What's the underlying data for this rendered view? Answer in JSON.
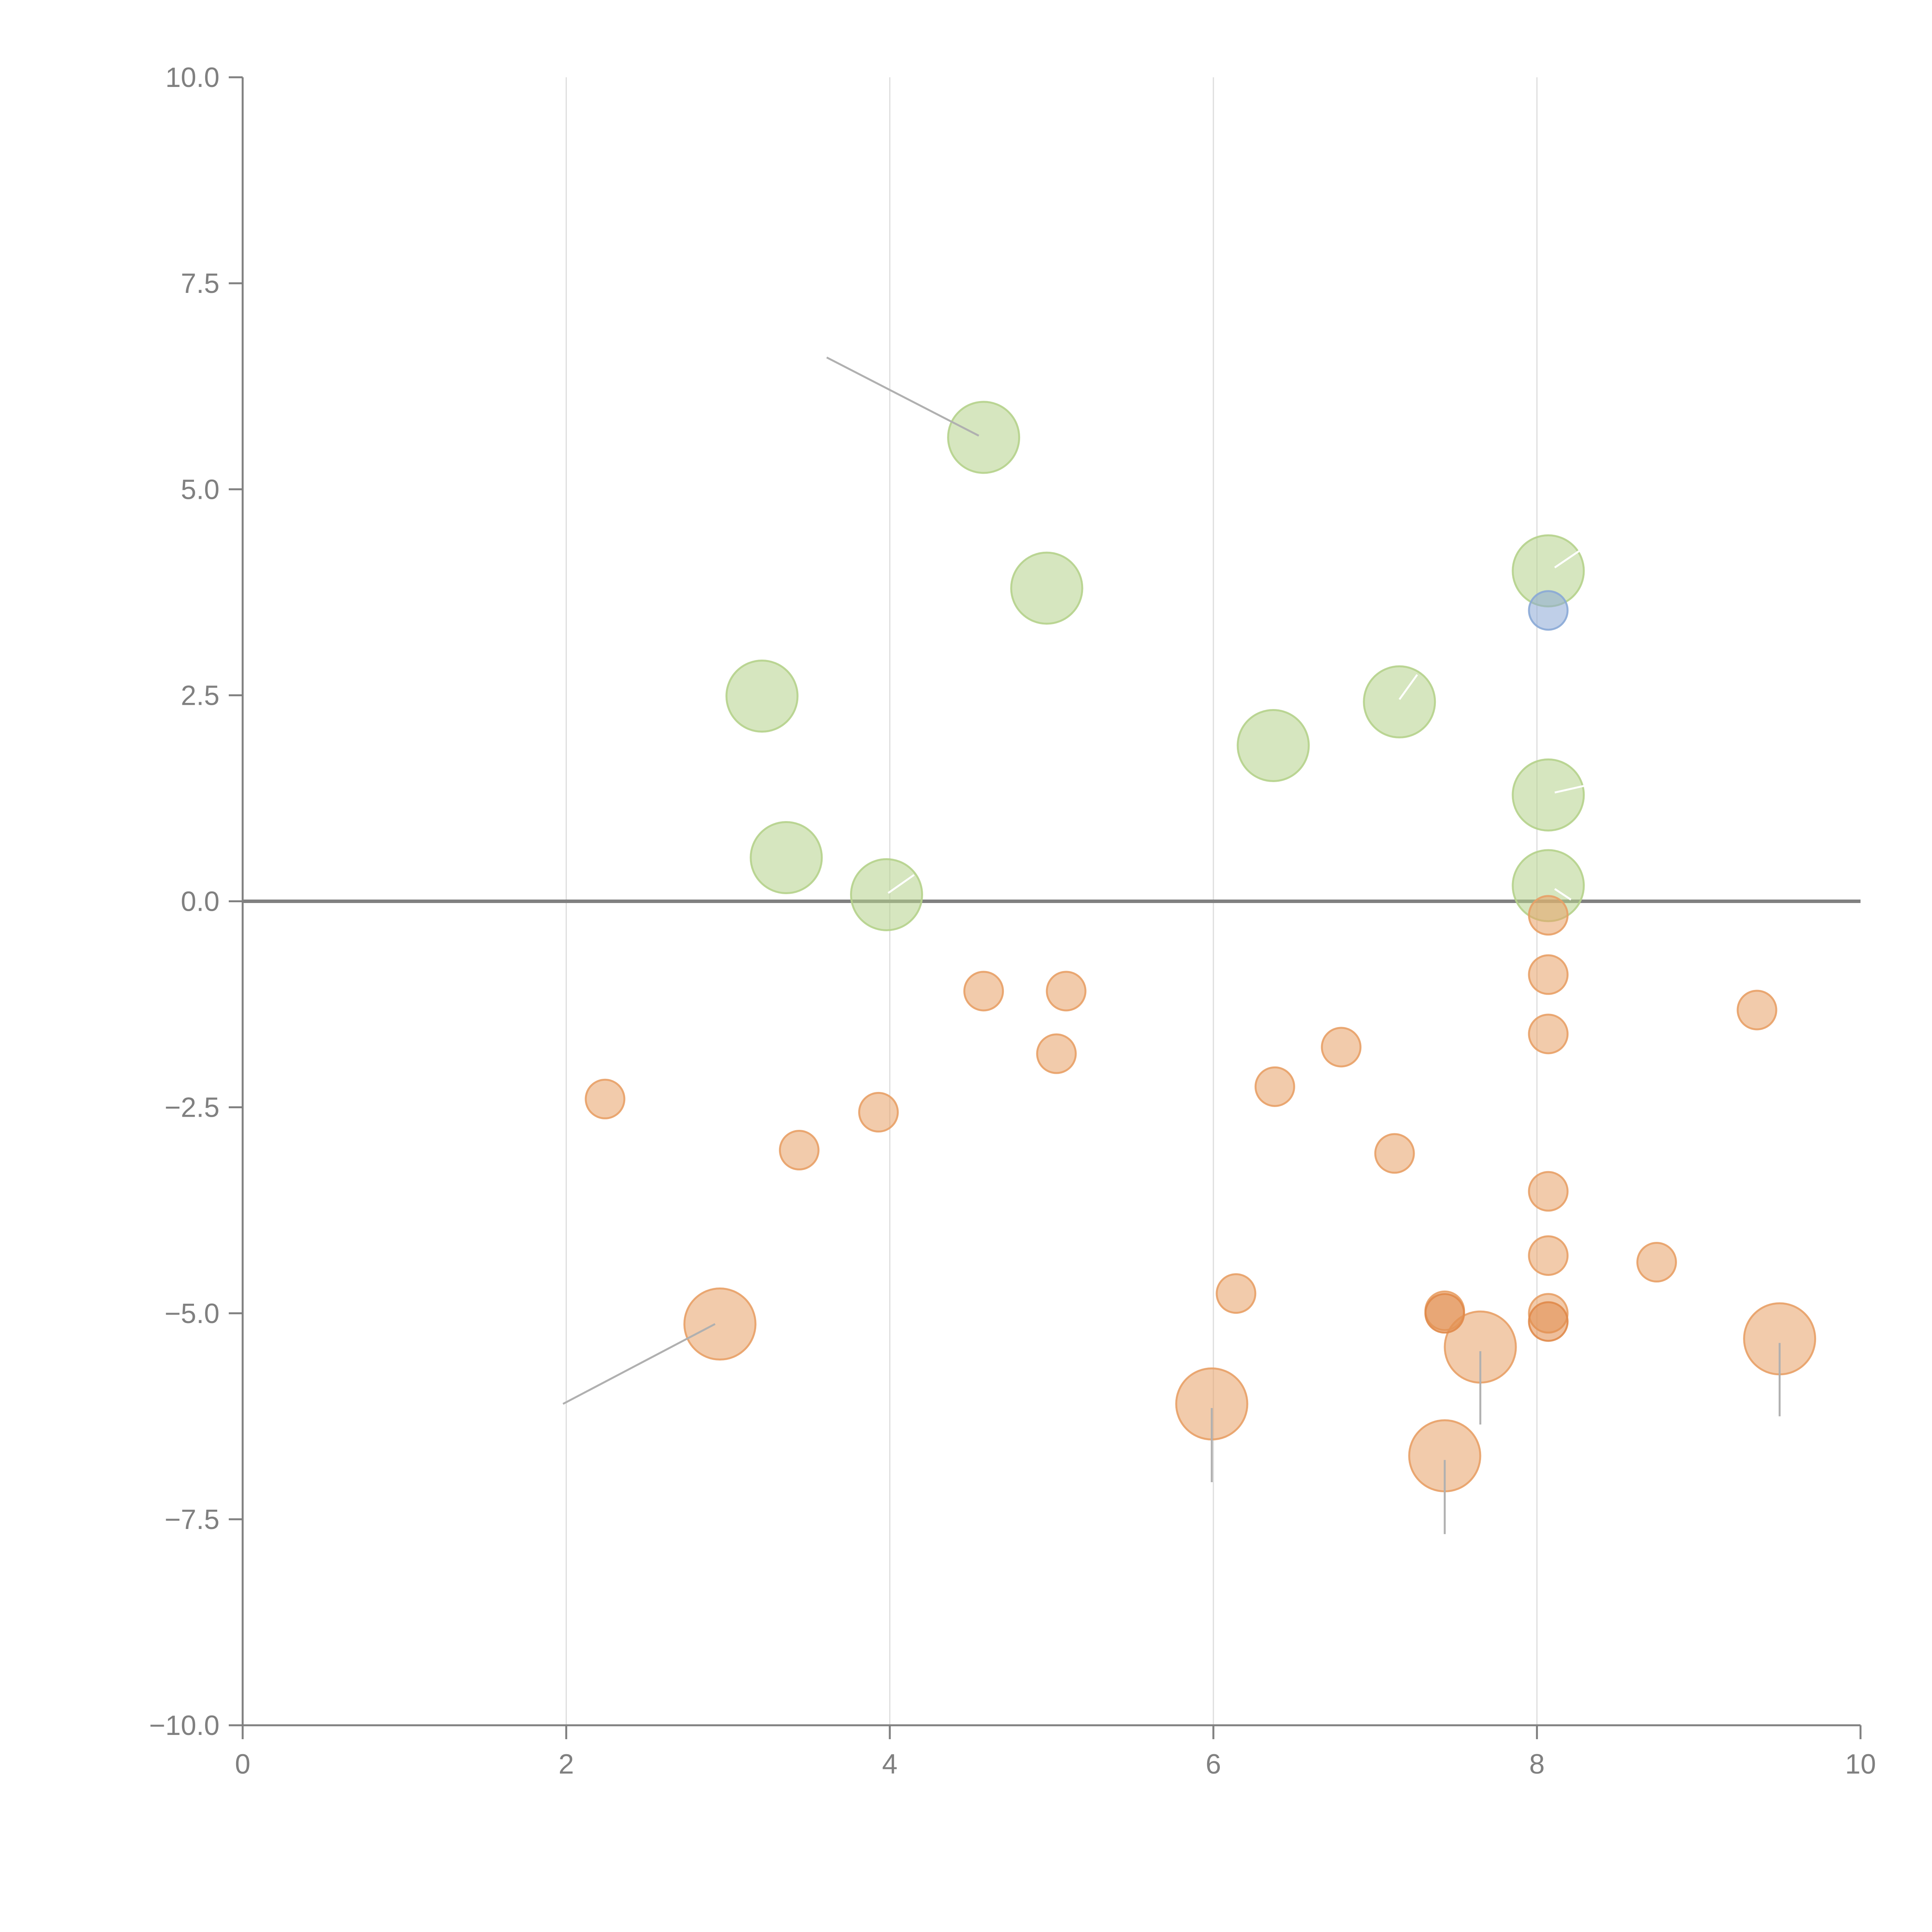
{
  "chart_data": {
    "type": "scatter",
    "title": "",
    "xlabel": "",
    "ylabel": "",
    "xlim": [
      0,
      10
    ],
    "ylim": [
      -10,
      10
    ],
    "xticks": [
      "0",
      "2",
      "4",
      "6",
      "8",
      "10"
    ],
    "yticks": [
      "10.0",
      "7.5",
      "5.0",
      "2.5",
      "0.0",
      "−2.5",
      "−5.0",
      "−7.5",
      "−10.0"
    ],
    "grid": "vertical",
    "reference_line_y": 0,
    "colors": {
      "green": "#b5d18b",
      "orange": "#e8a066",
      "orange_dark": "#e08a4a",
      "blue": "#8aa8d6",
      "axis": "#808080",
      "grid": "#dddddd",
      "leader": "#b0b0b0"
    },
    "series": [
      {
        "name": "green",
        "points": [
          {
            "x": 4.58,
            "y": 5.63,
            "size": "large"
          },
          {
            "x": 4.97,
            "y": 3.8,
            "size": "large"
          },
          {
            "x": 3.21,
            "y": 2.49,
            "size": "large"
          },
          {
            "x": 3.36,
            "y": 0.53,
            "size": "large"
          },
          {
            "x": 3.98,
            "y": 0.08,
            "size": "large"
          },
          {
            "x": 6.37,
            "y": 1.89,
            "size": "large"
          },
          {
            "x": 7.15,
            "y": 2.42,
            "size": "large"
          },
          {
            "x": 8.07,
            "y": 4.01,
            "size": "large"
          },
          {
            "x": 8.07,
            "y": 1.29,
            "size": "large"
          },
          {
            "x": 8.07,
            "y": 0.19,
            "size": "large"
          }
        ]
      },
      {
        "name": "blue",
        "points": [
          {
            "x": 8.07,
            "y": 3.53,
            "size": "small"
          }
        ]
      },
      {
        "name": "orange",
        "points": [
          {
            "x": 2.24,
            "y": -2.4,
            "size": "small"
          },
          {
            "x": 3.44,
            "y": -3.02,
            "size": "small"
          },
          {
            "x": 3.93,
            "y": -2.56,
            "size": "small"
          },
          {
            "x": 4.58,
            "y": -1.09,
            "size": "small"
          },
          {
            "x": 5.09,
            "y": -1.09,
            "size": "small"
          },
          {
            "x": 5.03,
            "y": -1.85,
            "size": "small"
          },
          {
            "x": 6.38,
            "y": -2.25,
            "size": "small"
          },
          {
            "x": 6.79,
            "y": -1.77,
            "size": "small"
          },
          {
            "x": 7.12,
            "y": -3.06,
            "size": "small"
          },
          {
            "x": 6.14,
            "y": -4.76,
            "size": "small"
          },
          {
            "x": 7.43,
            "y": -4.97,
            "size": "small"
          },
          {
            "x": 7.43,
            "y": -5.0,
            "size": "small",
            "dark": true
          },
          {
            "x": 8.07,
            "y": -0.17,
            "size": "small"
          },
          {
            "x": 8.07,
            "y": -0.89,
            "size": "small"
          },
          {
            "x": 8.07,
            "y": -1.61,
            "size": "small"
          },
          {
            "x": 8.07,
            "y": -3.52,
            "size": "small"
          },
          {
            "x": 8.07,
            "y": -4.3,
            "size": "small"
          },
          {
            "x": 8.07,
            "y": -5.0,
            "size": "small"
          },
          {
            "x": 8.07,
            "y": -5.1,
            "size": "small",
            "dark": true
          },
          {
            "x": 8.74,
            "y": -4.38,
            "size": "small"
          },
          {
            "x": 9.36,
            "y": -1.32,
            "size": "small"
          },
          {
            "x": 2.95,
            "y": -5.13,
            "size": "large"
          },
          {
            "x": 5.99,
            "y": -6.1,
            "size": "large"
          },
          {
            "x": 7.65,
            "y": -5.41,
            "size": "large"
          },
          {
            "x": 7.43,
            "y": -6.73,
            "size": "large"
          },
          {
            "x": 9.5,
            "y": -5.31,
            "size": "large"
          }
        ]
      }
    ],
    "leader_lines": [
      {
        "x1": 4.55,
        "y1": 5.65,
        "x2": 3.61,
        "y2": 6.6,
        "color": "grey"
      },
      {
        "x1": 2.92,
        "y1": -5.13,
        "x2": 1.98,
        "y2": -6.1,
        "color": "grey"
      },
      {
        "x1": 5.99,
        "y1": -6.15,
        "x2": 5.99,
        "y2": -7.05,
        "color": "grey"
      },
      {
        "x1": 7.65,
        "y1": -5.46,
        "x2": 7.65,
        "y2": -6.35,
        "color": "grey"
      },
      {
        "x1": 7.43,
        "y1": -6.78,
        "x2": 7.43,
        "y2": -7.68,
        "color": "grey"
      },
      {
        "x1": 9.5,
        "y1": -5.36,
        "x2": 9.5,
        "y2": -6.25,
        "color": "grey"
      },
      {
        "x1": 3.99,
        "y1": 0.1,
        "x2": 4.15,
        "y2": 0.32,
        "color": "white"
      },
      {
        "x1": 7.15,
        "y1": 2.45,
        "x2": 7.26,
        "y2": 2.75,
        "color": "white"
      },
      {
        "x1": 8.11,
        "y1": 4.05,
        "x2": 8.26,
        "y2": 4.25,
        "color": "white"
      },
      {
        "x1": 8.11,
        "y1": 1.32,
        "x2": 8.29,
        "y2": 1.4,
        "color": "white"
      },
      {
        "x1": 8.11,
        "y1": 0.15,
        "x2": 8.21,
        "y2": 0.02,
        "color": "white"
      }
    ]
  }
}
